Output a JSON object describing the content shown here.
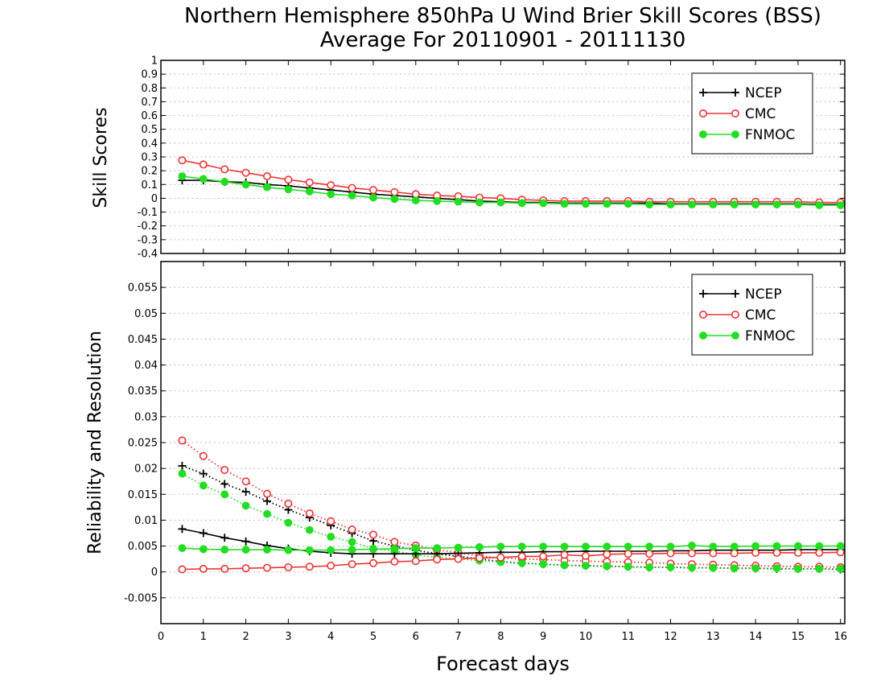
{
  "figure": {
    "title_line1": "Northern Hemisphere 850hPa U Wind Brier Skill Scores (BSS)",
    "title_line2": "Average For 20110901 - 20111130",
    "xlabel": "Forecast days"
  },
  "colors": {
    "NCEP": "#000000",
    "CMC": "#ee3333",
    "FNMOC": "#22dd22",
    "grid": "#aaaaaa"
  },
  "chart_data": [
    {
      "type": "line",
      "ylabel": "Skill Scores",
      "xlim": [
        0,
        16.1
      ],
      "ylim": [
        -0.4,
        1
      ],
      "xticks": [
        0,
        1,
        2,
        3,
        4,
        5,
        6,
        7,
        8,
        9,
        10,
        11,
        12,
        13,
        14,
        15,
        16
      ],
      "yticks": [
        -0.4,
        -0.3,
        -0.2,
        -0.1,
        0,
        0.1,
        0.2,
        0.3,
        0.4,
        0.5,
        0.6,
        0.7,
        0.8,
        0.9,
        1
      ],
      "ytick_labels": [
        "-0.4",
        "-0.3",
        "-0.2",
        "-0.1",
        "0",
        "0.1",
        "0.2",
        "0.3",
        "0.4",
        "0.5",
        "0.6",
        "0.7",
        "0.8",
        "0.9",
        "1"
      ],
      "grid": true,
      "legend_position": "top-right",
      "x": [
        0.5,
        1,
        1.5,
        2,
        2.5,
        3,
        3.5,
        4,
        4.5,
        5,
        5.5,
        6,
        6.5,
        7,
        7.5,
        8,
        8.5,
        9,
        9.5,
        10,
        10.5,
        11,
        11.5,
        12,
        12.5,
        13,
        13.5,
        14,
        14.5,
        15,
        15.5,
        16
      ],
      "series": [
        {
          "name": "NCEP",
          "marker": "plus",
          "values": [
            0.13,
            0.13,
            0.12,
            0.115,
            0.1,
            0.09,
            0.075,
            0.06,
            0.045,
            0.03,
            0.02,
            0.01,
            0.0,
            -0.01,
            -0.02,
            -0.025,
            -0.03,
            -0.03,
            -0.035,
            -0.035,
            -0.035,
            -0.035,
            -0.035,
            -0.04,
            -0.04,
            -0.04,
            -0.04,
            -0.04,
            -0.04,
            -0.04,
            -0.045,
            -0.045
          ]
        },
        {
          "name": "CMC",
          "marker": "circle-open",
          "values": [
            0.275,
            0.245,
            0.21,
            0.185,
            0.16,
            0.135,
            0.115,
            0.095,
            0.075,
            0.06,
            0.045,
            0.03,
            0.02,
            0.015,
            0.005,
            0.0,
            -0.01,
            -0.015,
            -0.02,
            -0.02,
            -0.02,
            -0.02,
            -0.025,
            -0.025,
            -0.025,
            -0.025,
            -0.025,
            -0.025,
            -0.025,
            -0.025,
            -0.03,
            -0.03
          ]
        },
        {
          "name": "FNMOC",
          "marker": "circle-filled",
          "values": [
            0.16,
            0.14,
            0.12,
            0.1,
            0.08,
            0.065,
            0.05,
            0.03,
            0.02,
            0.005,
            -0.005,
            -0.015,
            -0.02,
            -0.025,
            -0.03,
            -0.03,
            -0.035,
            -0.035,
            -0.04,
            -0.04,
            -0.04,
            -0.04,
            -0.045,
            -0.045,
            -0.045,
            -0.045,
            -0.045,
            -0.045,
            -0.045,
            -0.045,
            -0.05,
            -0.05
          ]
        }
      ]
    },
    {
      "type": "line",
      "ylabel": "Reliability and Resolution",
      "xlabel": "Forecast days",
      "xlim": [
        0,
        16.1
      ],
      "ylim": [
        -0.01,
        0.06
      ],
      "xticks": [
        0,
        1,
        2,
        3,
        4,
        5,
        6,
        7,
        8,
        9,
        10,
        11,
        12,
        13,
        14,
        15,
        16
      ],
      "yticks": [
        -0.005,
        0,
        0.005,
        0.01,
        0.015,
        0.02,
        0.025,
        0.03,
        0.035,
        0.04,
        0.045,
        0.05,
        0.055
      ],
      "ytick_labels": [
        "-0.005",
        "0",
        "0.005",
        "0.01",
        "0.015",
        "0.02",
        "0.025",
        "0.03",
        "0.035",
        "0.04",
        "0.045",
        "0.05",
        "0.055"
      ],
      "grid": true,
      "legend_position": "top-right",
      "x": [
        0.5,
        1,
        1.5,
        2,
        2.5,
        3,
        3.5,
        4,
        4.5,
        5,
        5.5,
        6,
        6.5,
        7,
        7.5,
        8,
        8.5,
        9,
        9.5,
        10,
        10.5,
        11,
        11.5,
        12,
        12.5,
        13,
        13.5,
        14,
        14.5,
        15,
        15.5,
        16
      ],
      "series": [
        {
          "name": "NCEP",
          "marker": "plus",
          "line": "dotted",
          "values": [
            0.0205,
            0.019,
            0.017,
            0.0155,
            0.0137,
            0.012,
            0.0105,
            0.009,
            0.0075,
            0.006,
            0.005,
            0.0042,
            0.0035,
            0.003,
            0.0025,
            0.002,
            0.0017,
            0.0015,
            0.0013,
            0.0012,
            0.0011,
            0.001,
            0.0009,
            0.0009,
            0.0008,
            0.0008,
            0.0007,
            0.0007,
            0.0006,
            0.0006,
            0.0006,
            0.0005
          ]
        },
        {
          "name": "CMC",
          "marker": "circle-open",
          "line": "dotted",
          "values": [
            0.0254,
            0.0224,
            0.0197,
            0.0175,
            0.0151,
            0.0132,
            0.0113,
            0.0098,
            0.0082,
            0.0072,
            0.0058,
            0.0051,
            0.0043,
            0.0037,
            0.0031,
            0.0027,
            0.0025,
            0.0024,
            0.0022,
            0.0021,
            0.002,
            0.0019,
            0.0018,
            0.0016,
            0.0015,
            0.0014,
            0.0013,
            0.0012,
            0.0011,
            0.001,
            0.001,
            0.0009
          ]
        },
        {
          "name": "FNMOC",
          "marker": "circle-filled",
          "line": "dotted",
          "values": [
            0.019,
            0.0167,
            0.015,
            0.0128,
            0.0112,
            0.0095,
            0.0081,
            0.0068,
            0.0058,
            0.0045,
            0.004,
            0.0033,
            0.0028,
            0.0025,
            0.0022,
            0.0019,
            0.0017,
            0.0015,
            0.0013,
            0.0012,
            0.0011,
            0.001,
            0.0009,
            0.0009,
            0.0008,
            0.0008,
            0.0007,
            0.0007,
            0.0007,
            0.0006,
            0.0006,
            0.0006
          ]
        },
        {
          "name": "NCEP",
          "marker": "plus",
          "line": "solid",
          "values": [
            0.0083,
            0.0075,
            0.0066,
            0.0059,
            0.0051,
            0.0045,
            0.004,
            0.0037,
            0.0035,
            0.0035,
            0.0035,
            0.0035,
            0.0035,
            0.0036,
            0.0037,
            0.0038,
            0.0038,
            0.0039,
            0.0039,
            0.004,
            0.004,
            0.004,
            0.004,
            0.0041,
            0.0041,
            0.0042,
            0.0042,
            0.0042,
            0.0042,
            0.0043,
            0.0043,
            0.0043
          ]
        },
        {
          "name": "CMC",
          "marker": "circle-open",
          "line": "solid",
          "values": [
            0.0005,
            0.0006,
            0.0006,
            0.0007,
            0.0008,
            0.0009,
            0.001,
            0.0012,
            0.0015,
            0.0017,
            0.002,
            0.0021,
            0.0024,
            0.0025,
            0.0027,
            0.0028,
            0.003,
            0.003,
            0.0033,
            0.0031,
            0.0034,
            0.0035,
            0.0035,
            0.0036,
            0.0036,
            0.0036,
            0.0036,
            0.0037,
            0.0037,
            0.0037,
            0.0037,
            0.0038
          ]
        },
        {
          "name": "FNMOC",
          "marker": "circle-filled",
          "line": "solid",
          "values": [
            0.0046,
            0.0044,
            0.0043,
            0.0043,
            0.0043,
            0.0042,
            0.0042,
            0.0042,
            0.0043,
            0.0044,
            0.0045,
            0.0046,
            0.0046,
            0.0047,
            0.0048,
            0.0049,
            0.0049,
            0.0049,
            0.0049,
            0.0049,
            0.0049,
            0.0049,
            0.0049,
            0.0049,
            0.0051,
            0.0049,
            0.0049,
            0.005,
            0.005,
            0.005,
            0.005,
            0.005
          ]
        }
      ]
    }
  ]
}
